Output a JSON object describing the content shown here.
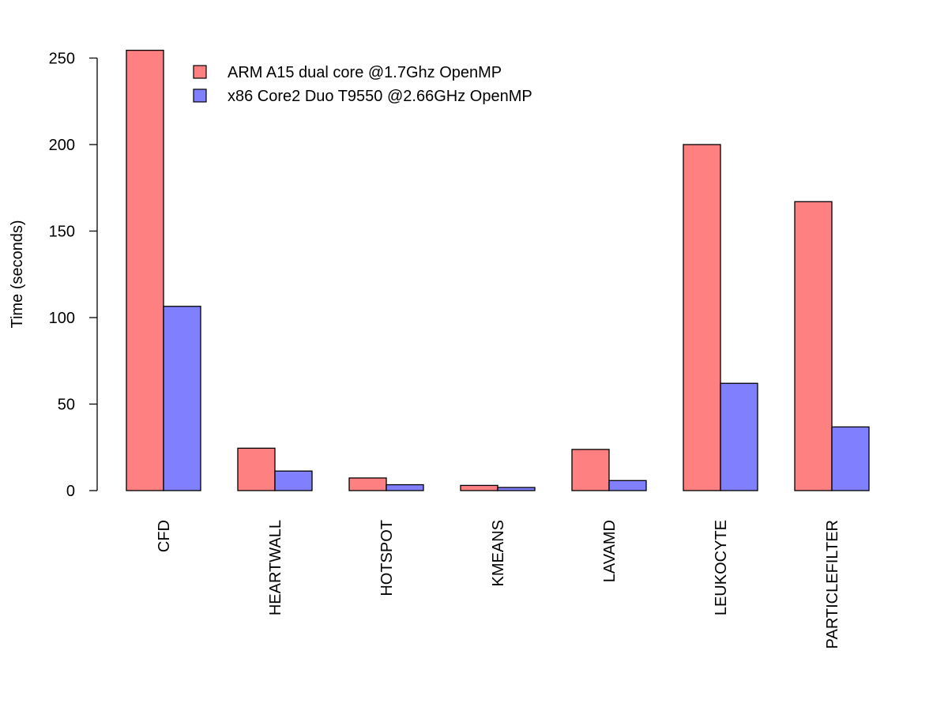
{
  "chart_data": {
    "type": "bar",
    "title": "",
    "xlabel": "",
    "ylabel": "Time (seconds)",
    "ylim": [
      0,
      255
    ],
    "yticks": [
      0,
      50,
      100,
      150,
      200,
      250
    ],
    "categories": [
      "CFD",
      "HEARTWALL",
      "HOTSPOT",
      "KMEANS",
      "LAVAMD",
      "LEUKOCYTE",
      "PARTICLEFILTER"
    ],
    "series": [
      {
        "name": "ARM A15 dual core @1.7Ghz OpenMP",
        "color": "#ff8080",
        "values": [
          254.5,
          24.5,
          7.3,
          3.0,
          23.8,
          200.0,
          167.0
        ]
      },
      {
        "name": "x86 Core2 Duo T9550 @2.66GHz OpenMP",
        "color": "#8080ff",
        "values": [
          106.5,
          11.3,
          3.4,
          1.8,
          5.8,
          62.0,
          36.8
        ]
      }
    ],
    "grid": false,
    "legend_position": "top-left",
    "category_label_orientation": "vertical"
  }
}
